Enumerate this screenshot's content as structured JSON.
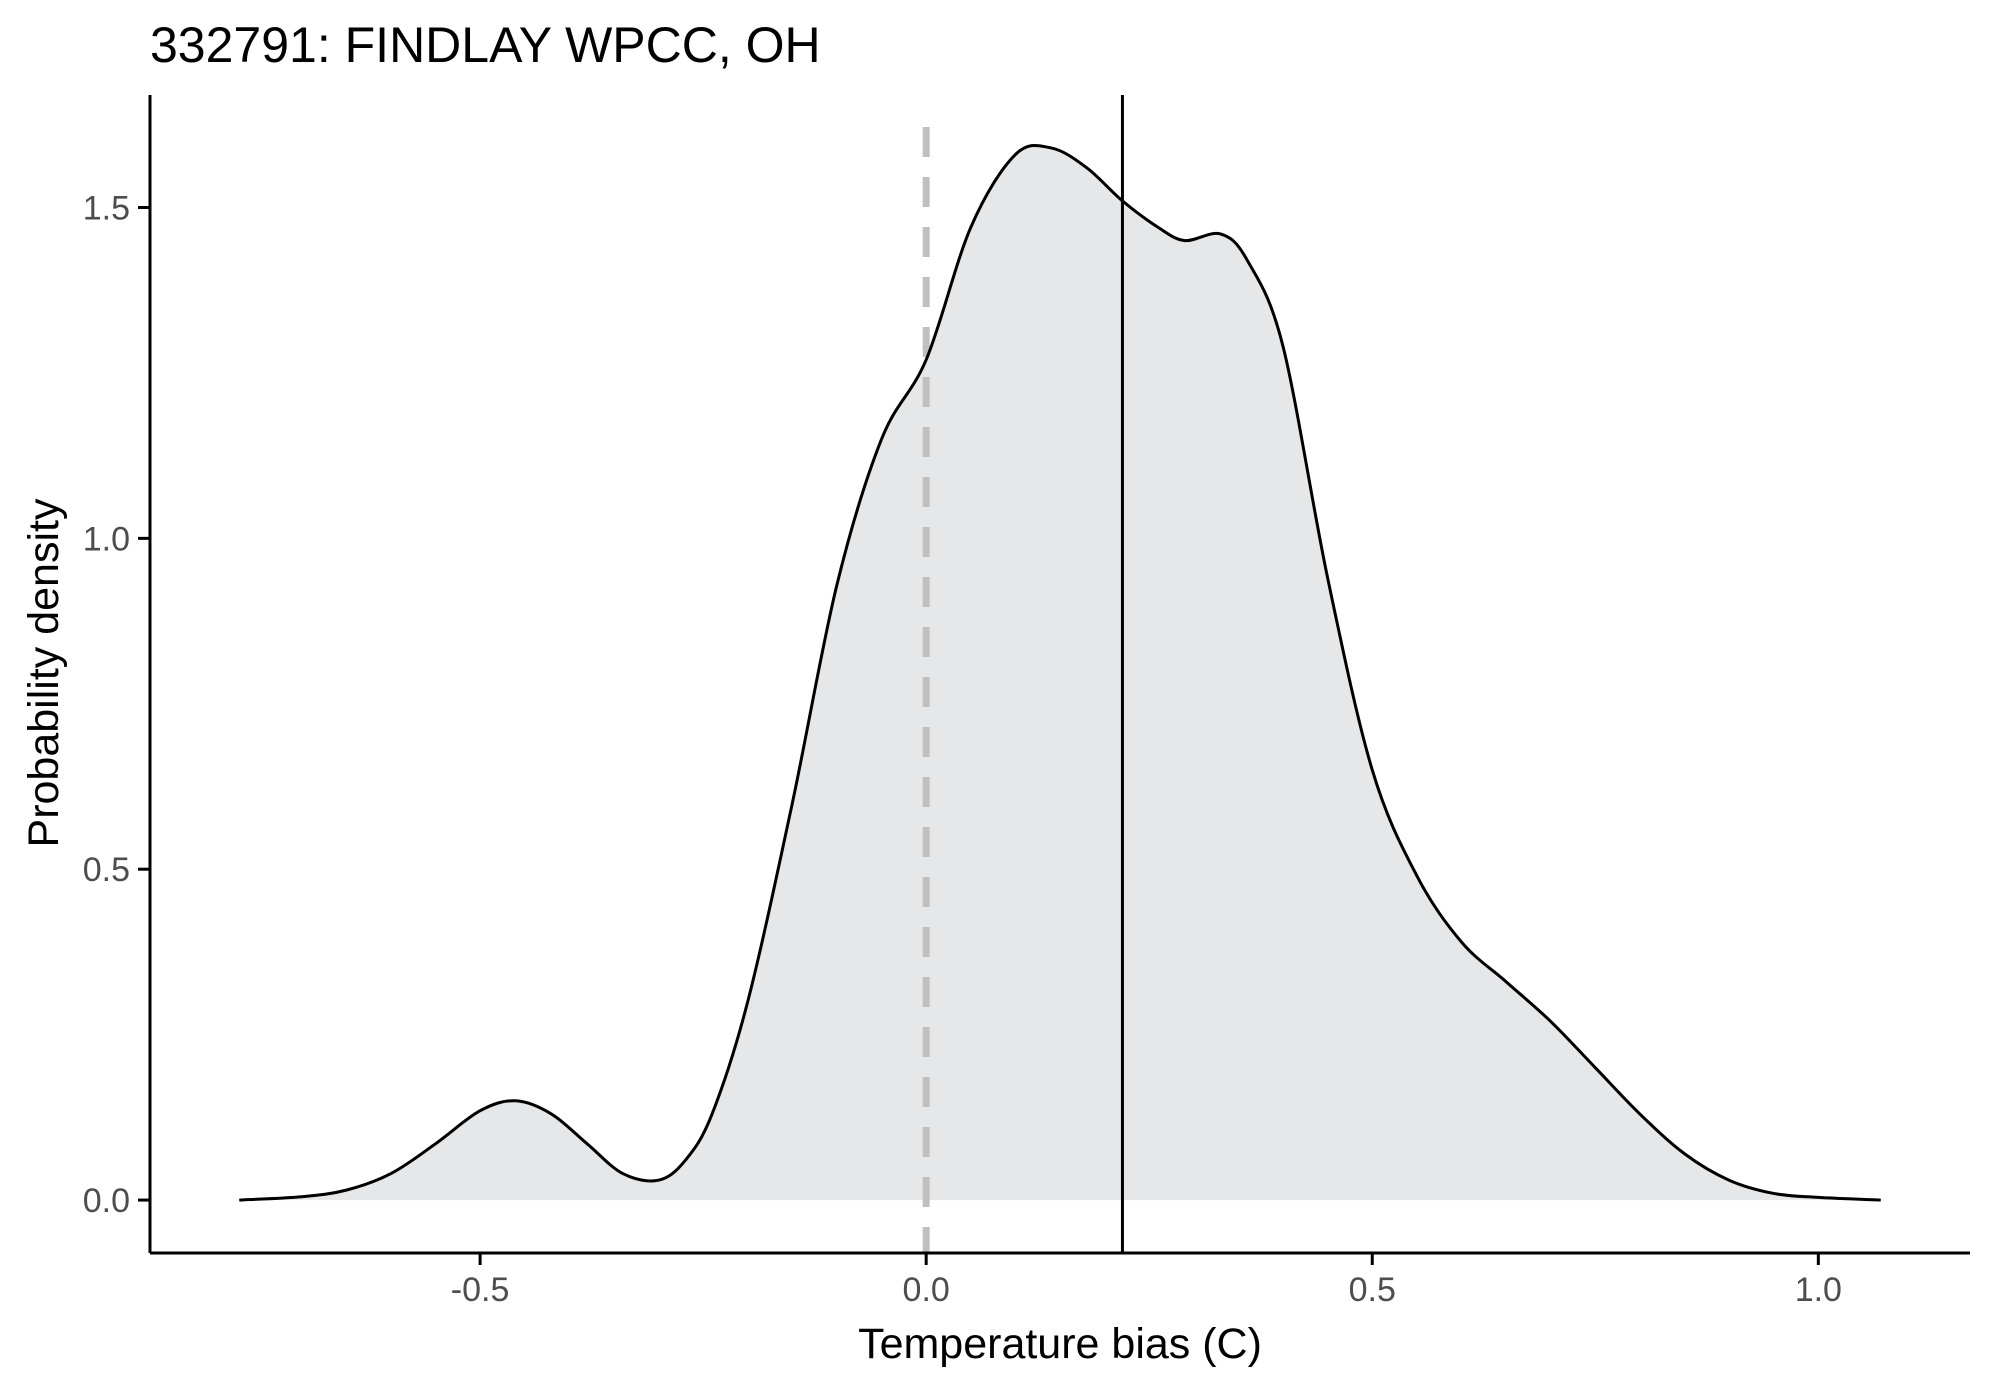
{
  "chart_data": {
    "type": "area",
    "title": "332791: FINDLAY WPCC, OH",
    "xlabel": "Temperature bias (C)",
    "ylabel": "Probability density",
    "xlim": [
      -0.87,
      1.17
    ],
    "ylim": [
      -0.08,
      1.67
    ],
    "x_ticks": [
      -0.5,
      0.0,
      0.5,
      1.0
    ],
    "x_tick_labels": [
      "-0.5",
      "0.0",
      "0.5",
      "1.0"
    ],
    "y_ticks": [
      0.0,
      0.5,
      1.0,
      1.5
    ],
    "y_tick_labels": [
      "0.0",
      "0.5",
      "1.0",
      "1.5"
    ],
    "grid": false,
    "reference_lines": [
      {
        "x": 0.0,
        "style": "dashed",
        "color": "#c0c0c0"
      },
      {
        "x": 0.22,
        "style": "solid",
        "color": "#000000"
      }
    ],
    "colors": {
      "fill": "#e6e7e8",
      "line": "#000000",
      "axis": "#000000",
      "ticks": "#4d4d4d"
    },
    "series": [
      {
        "x": [
          -0.77,
          -0.7,
          -0.65,
          -0.6,
          -0.55,
          -0.5,
          -0.46,
          -0.42,
          -0.38,
          -0.34,
          -0.3,
          -0.27,
          -0.24,
          -0.2,
          -0.15,
          -0.1,
          -0.05,
          0.0,
          0.05,
          0.1,
          0.14,
          0.18,
          0.22,
          0.26,
          0.29,
          0.33,
          0.36,
          0.4,
          0.45,
          0.5,
          0.55,
          0.6,
          0.65,
          0.7,
          0.75,
          0.8,
          0.85,
          0.9,
          0.95,
          1.0,
          1.07
        ],
        "y": [
          0.0,
          0.005,
          0.015,
          0.04,
          0.085,
          0.135,
          0.15,
          0.13,
          0.085,
          0.04,
          0.03,
          0.06,
          0.13,
          0.3,
          0.6,
          0.93,
          1.15,
          1.27,
          1.47,
          1.58,
          1.59,
          1.56,
          1.51,
          1.47,
          1.45,
          1.46,
          1.42,
          1.29,
          0.94,
          0.65,
          0.49,
          0.39,
          0.33,
          0.27,
          0.2,
          0.13,
          0.07,
          0.03,
          0.01,
          0.004,
          0.0
        ]
      }
    ]
  }
}
